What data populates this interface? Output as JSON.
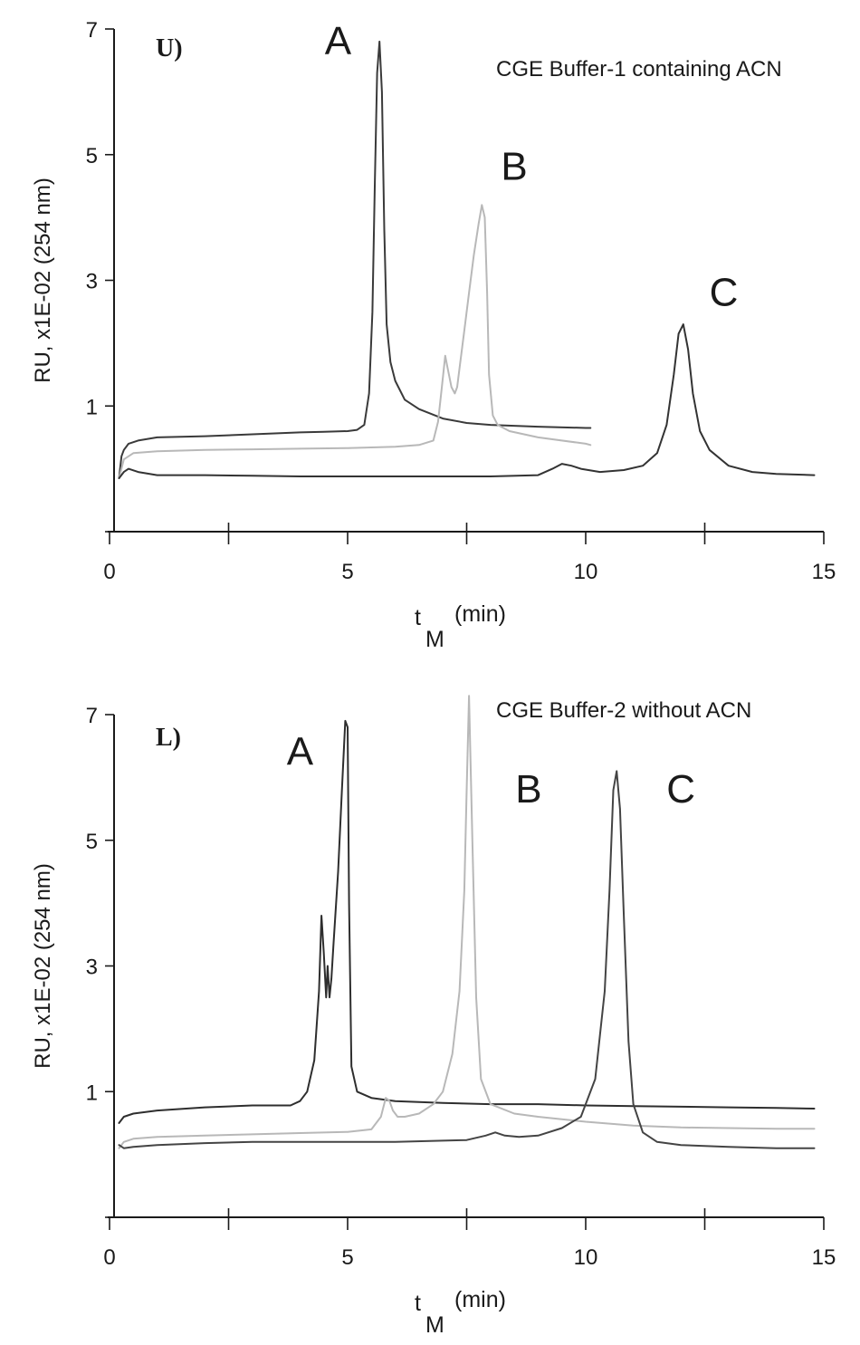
{
  "chart_data": [
    {
      "type": "line",
      "panel_label": "U)",
      "annotation": "CGE Buffer-1 containing ACN",
      "xlabel": "t",
      "xlabel_sub": "M",
      "xlabel_unit": "(min)",
      "ylabel": "RU, x1E-02 (254 nm)",
      "xlim": [
        0,
        15
      ],
      "ylim": [
        -1,
        7
      ],
      "xticks": [
        0,
        2.5,
        5,
        7.5,
        10,
        12.5,
        15
      ],
      "xtick_labels": [
        "0",
        "",
        "5",
        "",
        "10",
        "",
        "15"
      ],
      "yticks": [
        1,
        3,
        5,
        7
      ],
      "ytick_labels": [
        "1",
        "3",
        "5",
        "7"
      ],
      "peak_labels": [
        {
          "text": "A",
          "x": 4.8,
          "y": 6.6
        },
        {
          "text": "B",
          "x": 8.5,
          "y": 4.6
        },
        {
          "text": "C",
          "x": 12.9,
          "y": 2.6
        }
      ],
      "series": [
        {
          "color": "#3a3a3a",
          "x": [
            0.2,
            0.25,
            0.3,
            0.4,
            0.6,
            1.0,
            2.0,
            3.0,
            4.0,
            4.5,
            5.0,
            5.2,
            5.35,
            5.45,
            5.52,
            5.57,
            5.62,
            5.67,
            5.72,
            5.77,
            5.82,
            5.9,
            6.0,
            6.2,
            6.5,
            7.0,
            7.5,
            8.0,
            9.0,
            10.0,
            10.1
          ],
          "y": [
            -0.15,
            0.2,
            0.3,
            0.4,
            0.45,
            0.5,
            0.52,
            0.55,
            0.58,
            0.59,
            0.6,
            0.62,
            0.7,
            1.2,
            2.5,
            4.5,
            6.3,
            6.8,
            6.0,
            3.8,
            2.3,
            1.7,
            1.4,
            1.1,
            0.95,
            0.8,
            0.73,
            0.7,
            0.67,
            0.65,
            0.65
          ]
        },
        {
          "color": "#b8b8b8",
          "x": [
            0.2,
            0.3,
            0.5,
            1.0,
            2.0,
            3.0,
            4.0,
            5.0,
            6.0,
            6.5,
            6.8,
            6.9,
            6.98,
            7.05,
            7.1,
            7.18,
            7.25,
            7.3,
            7.35,
            7.45,
            7.55,
            7.65,
            7.75,
            7.82,
            7.88,
            7.93,
            7.97,
            8.05,
            8.15,
            8.4,
            9.0,
            10.0,
            10.1
          ],
          "y": [
            -0.15,
            0.15,
            0.25,
            0.28,
            0.3,
            0.31,
            0.32,
            0.33,
            0.35,
            0.38,
            0.45,
            0.75,
            1.3,
            1.8,
            1.6,
            1.3,
            1.2,
            1.3,
            1.6,
            2.2,
            2.8,
            3.4,
            3.9,
            4.2,
            4.0,
            2.8,
            1.5,
            0.85,
            0.7,
            0.6,
            0.5,
            0.4,
            0.38
          ]
        },
        {
          "color": "#333333",
          "x": [
            0.2,
            0.3,
            0.4,
            0.6,
            1.0,
            2.0,
            3.0,
            4.0,
            5.0,
            6.0,
            7.0,
            8.0,
            9.0,
            9.3,
            9.5,
            9.7,
            9.9,
            10.3,
            10.8,
            11.2,
            11.5,
            11.7,
            11.85,
            11.95,
            12.05,
            12.15,
            12.25,
            12.4,
            12.6,
            13.0,
            13.5,
            14.0,
            14.8
          ],
          "y": [
            -0.15,
            -0.05,
            0.0,
            -0.05,
            -0.1,
            -0.1,
            -0.11,
            -0.12,
            -0.12,
            -0.12,
            -0.12,
            -0.12,
            -0.1,
            0.0,
            0.08,
            0.05,
            0.0,
            -0.05,
            -0.02,
            0.05,
            0.25,
            0.7,
            1.5,
            2.15,
            2.3,
            1.9,
            1.2,
            0.6,
            0.3,
            0.05,
            -0.05,
            -0.08,
            -0.1
          ]
        }
      ]
    },
    {
      "type": "line",
      "panel_label": "L)",
      "annotation": "CGE Buffer-2 without ACN",
      "xlabel": "t",
      "xlabel_sub": "M",
      "xlabel_unit": "(min)",
      "ylabel": "RU, x1E-02 (254 nm)",
      "xlim": [
        0,
        15
      ],
      "ylim": [
        -1,
        7
      ],
      "xticks": [
        0,
        2.5,
        5,
        7.5,
        10,
        12.5,
        15
      ],
      "xtick_labels": [
        "0",
        "",
        "5",
        "",
        "10",
        "",
        "15"
      ],
      "yticks": [
        1,
        3,
        5,
        7
      ],
      "ytick_labels": [
        "1",
        "3",
        "5",
        "7"
      ],
      "peak_labels": [
        {
          "text": "A",
          "x": 4.0,
          "y": 6.2
        },
        {
          "text": "B",
          "x": 8.8,
          "y": 5.6
        },
        {
          "text": "C",
          "x": 12.0,
          "y": 5.6
        }
      ],
      "series": [
        {
          "color": "#2e2e2e",
          "x": [
            0.2,
            0.3,
            0.5,
            1.0,
            2.0,
            3.0,
            3.8,
            4.0,
            4.15,
            4.3,
            4.4,
            4.45,
            4.5,
            4.55,
            4.58,
            4.62,
            4.66,
            4.7,
            4.8,
            4.88,
            4.95,
            5.0,
            5.03,
            5.08,
            5.2,
            5.5,
            6.0,
            7.0,
            8.0,
            9.0,
            10.0,
            11.0,
            12.0,
            13.0,
            14.0,
            14.8
          ],
          "y": [
            0.5,
            0.6,
            0.65,
            0.7,
            0.75,
            0.78,
            0.78,
            0.85,
            1.0,
            1.5,
            2.6,
            3.8,
            3.2,
            2.5,
            3.0,
            2.5,
            2.8,
            3.3,
            4.5,
            5.8,
            6.9,
            6.8,
            4.0,
            1.4,
            1.0,
            0.9,
            0.85,
            0.82,
            0.8,
            0.8,
            0.78,
            0.77,
            0.76,
            0.75,
            0.74,
            0.73
          ]
        },
        {
          "color": "#b8b8b8",
          "x": [
            0.2,
            0.3,
            0.5,
            1.0,
            2.0,
            3.0,
            4.0,
            5.0,
            5.5,
            5.7,
            5.8,
            5.88,
            5.95,
            6.05,
            6.2,
            6.5,
            6.8,
            7.0,
            7.2,
            7.35,
            7.45,
            7.5,
            7.55,
            7.62,
            7.7,
            7.8,
            8.0,
            8.5,
            9.0,
            10.0,
            11.0,
            12.0,
            13.0,
            14.0,
            14.8
          ],
          "y": [
            0.1,
            0.2,
            0.25,
            0.28,
            0.3,
            0.32,
            0.34,
            0.36,
            0.4,
            0.6,
            0.9,
            0.85,
            0.7,
            0.6,
            0.6,
            0.65,
            0.8,
            1.0,
            1.6,
            2.6,
            4.2,
            5.8,
            7.3,
            5.0,
            2.5,
            1.2,
            0.8,
            0.65,
            0.6,
            0.52,
            0.46,
            0.43,
            0.42,
            0.41,
            0.41
          ]
        },
        {
          "color": "#444444",
          "x": [
            0.2,
            0.3,
            0.5,
            1.0,
            2.0,
            3.0,
            4.0,
            5.0,
            6.0,
            7.0,
            7.5,
            7.9,
            8.1,
            8.3,
            8.6,
            9.0,
            9.5,
            9.9,
            10.2,
            10.4,
            10.5,
            10.58,
            10.65,
            10.72,
            10.8,
            10.9,
            11.0,
            11.2,
            11.5,
            12.0,
            13.0,
            14.0,
            14.8
          ],
          "y": [
            0.15,
            0.1,
            0.12,
            0.15,
            0.18,
            0.2,
            0.2,
            0.2,
            0.2,
            0.22,
            0.23,
            0.3,
            0.35,
            0.3,
            0.28,
            0.3,
            0.42,
            0.6,
            1.2,
            2.6,
            4.2,
            5.8,
            6.1,
            5.5,
            3.8,
            1.8,
            0.8,
            0.35,
            0.2,
            0.15,
            0.12,
            0.1,
            0.1
          ]
        }
      ]
    }
  ]
}
